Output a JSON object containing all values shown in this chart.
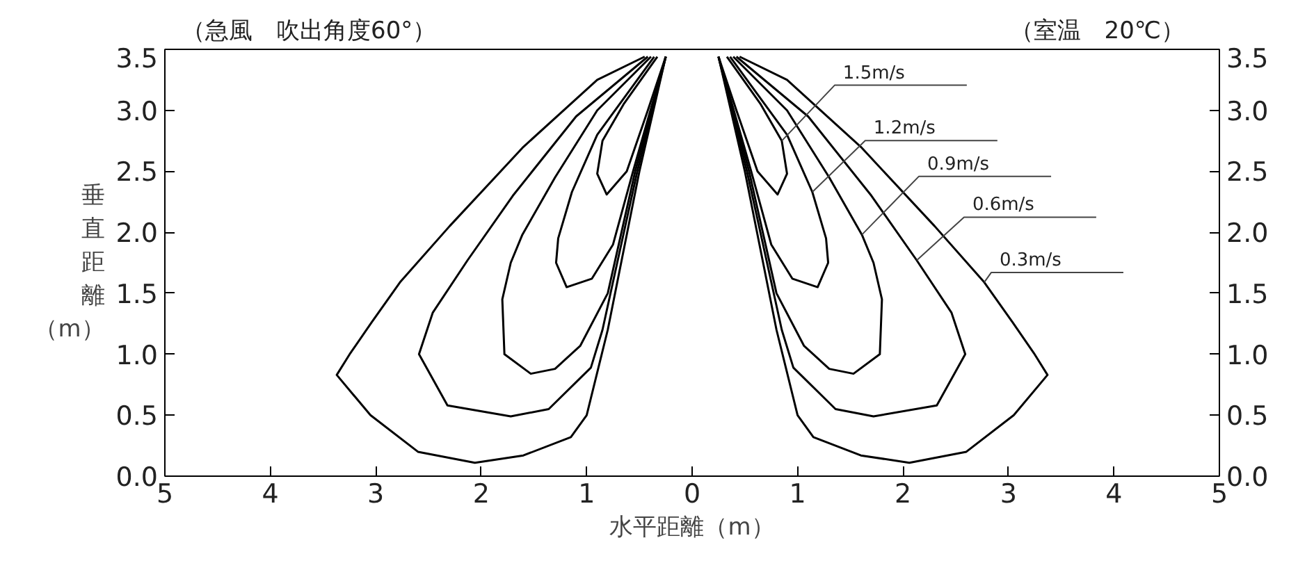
{
  "chart_data": {
    "type": "line",
    "xlabel": "水平距離（m）",
    "ylabel": "垂直距離（m）",
    "xlim": [
      -5,
      5
    ],
    "xticks": [
      {
        "value": -5,
        "label": "5"
      },
      {
        "value": -4,
        "label": "4"
      },
      {
        "value": -3,
        "label": "3"
      },
      {
        "value": -2,
        "label": "2"
      },
      {
        "value": -1,
        "label": "1"
      },
      0,
      1,
      2,
      3,
      4,
      5
    ],
    "ylim": [
      0,
      3.5
    ],
    "yticks": [
      {
        "value": 0,
        "label": "0.0"
      },
      {
        "value": 0.5,
        "label": "0.5"
      },
      {
        "value": 1,
        "label": "1.0"
      },
      {
        "value": 1.5,
        "label": "1.5"
      },
      {
        "value": 2,
        "label": "2.0"
      },
      {
        "value": 2.5,
        "label": "2.5"
      },
      {
        "value": 3,
        "label": "3.0"
      },
      {
        "value": 3.5,
        "label": "3.5"
      }
    ],
    "y2lim": [
      0,
      3.5
    ],
    "y2ticks": [
      {
        "value": 0,
        "label": "0.0"
      },
      {
        "value": 0.5,
        "label": "0.5"
      },
      {
        "value": 1,
        "label": "1.0"
      },
      {
        "value": 1.5,
        "label": "1.5"
      },
      {
        "value": 2,
        "label": "2.0"
      },
      {
        "value": 2.5,
        "label": "2.5"
      },
      {
        "value": 3,
        "label": "3.0"
      },
      {
        "value": 3.5,
        "label": "3.5"
      }
    ],
    "series": [
      {
        "color": "#000000",
        "x": [
          0.25,
          0.5,
          0.8,
          1.0,
          1.15,
          1.6,
          2.06,
          2.6,
          3.05,
          3.37,
          3.24,
          3.04,
          2.77,
          2.3,
          1.6,
          0.9,
          0.45,
          null,
          -0.25,
          -0.5,
          -0.8,
          -1.0,
          -1.15,
          -1.6,
          -2.06,
          -2.6,
          -3.05,
          -3.37,
          -3.24,
          -3.04,
          -2.77,
          -2.3,
          -1.6,
          -0.9,
          -0.45
        ],
        "values": [
          3.44,
          2.5,
          1.2,
          0.5,
          0.32,
          0.17,
          0.11,
          0.2,
          0.5,
          0.83,
          1.01,
          1.26,
          1.59,
          2.05,
          2.7,
          3.25,
          3.44,
          null,
          3.44,
          2.5,
          1.2,
          0.5,
          0.32,
          0.17,
          0.11,
          0.2,
          0.5,
          0.83,
          1.01,
          1.26,
          1.59,
          2.05,
          2.7,
          3.25,
          3.44
        ]
      },
      {
        "color": "#000000",
        "x": [
          0.25,
          0.52,
          0.85,
          0.96,
          1.36,
          1.72,
          2.32,
          2.59,
          2.46,
          2.13,
          1.7,
          1.1,
          0.42,
          null,
          -0.25,
          -0.52,
          -0.85,
          -0.96,
          -1.36,
          -1.72,
          -2.32,
          -2.59,
          -2.46,
          -2.13,
          -1.7,
          -1.1,
          -0.42
        ],
        "values": [
          3.44,
          2.5,
          1.2,
          0.89,
          0.55,
          0.49,
          0.58,
          1.0,
          1.34,
          1.77,
          2.3,
          2.95,
          3.44,
          null,
          3.44,
          2.5,
          1.2,
          0.89,
          0.55,
          0.49,
          0.58,
          1.0,
          1.34,
          1.77,
          2.3,
          2.95,
          3.44
        ]
      },
      {
        "color": "#000000",
        "x": [
          0.25,
          0.54,
          0.8,
          1.06,
          1.3,
          1.53,
          1.78,
          1.8,
          1.72,
          1.61,
          1.3,
          0.9,
          0.39,
          null,
          -0.25,
          -0.54,
          -0.8,
          -1.06,
          -1.3,
          -1.53,
          -1.78,
          -1.8,
          -1.72,
          -1.61,
          -1.3,
          -0.9,
          -0.39
        ],
        "values": [
          3.44,
          2.5,
          1.5,
          1.07,
          0.88,
          0.84,
          1.0,
          1.45,
          1.75,
          1.98,
          2.45,
          3.0,
          3.44,
          null,
          3.44,
          2.5,
          1.5,
          1.07,
          0.88,
          0.84,
          1.0,
          1.45,
          1.75,
          1.98,
          2.45,
          3.0,
          3.44
        ]
      },
      {
        "color": "#000000",
        "x": [
          0.25,
          0.56,
          0.75,
          0.95,
          1.19,
          1.29,
          1.27,
          1.14,
          0.9,
          0.36,
          null,
          -0.25,
          -0.56,
          -0.75,
          -0.95,
          -1.19,
          -1.29,
          -1.27,
          -1.14,
          -0.9,
          -0.36
        ],
        "values": [
          3.44,
          2.5,
          1.9,
          1.62,
          1.55,
          1.75,
          1.95,
          2.33,
          2.8,
          3.44,
          null,
          3.44,
          2.5,
          1.9,
          1.62,
          1.55,
          1.75,
          1.95,
          2.33,
          2.8,
          3.44
        ]
      },
      {
        "color": "#000000",
        "x": [
          0.25,
          0.42,
          0.62,
          0.81,
          0.9,
          0.85,
          0.65,
          0.33,
          null,
          -0.25,
          -0.42,
          -0.62,
          -0.81,
          -0.9,
          -0.85,
          -0.65,
          -0.33
        ],
        "values": [
          3.44,
          3.0,
          2.5,
          2.31,
          2.48,
          2.75,
          3.05,
          3.44,
          null,
          3.44,
          3.0,
          2.5,
          2.31,
          2.48,
          2.75,
          3.05,
          3.44
        ]
      }
    ],
    "annotations": [
      "（急風　吹出角度60°）",
      "（室温　20℃）",
      {
        "text": "1.5m/s",
        "x": 0.85,
        "y": 2.75
      },
      {
        "text": "1.2m/s",
        "x": 1.14,
        "y": 2.33
      },
      {
        "text": "0.9m/s",
        "x": 1.61,
        "y": 1.98
      },
      {
        "text": "0.6m/s",
        "x": 2.13,
        "y": 1.77
      },
      {
        "text": "0.3m/s",
        "x": 2.77,
        "y": 1.59
      }
    ]
  }
}
